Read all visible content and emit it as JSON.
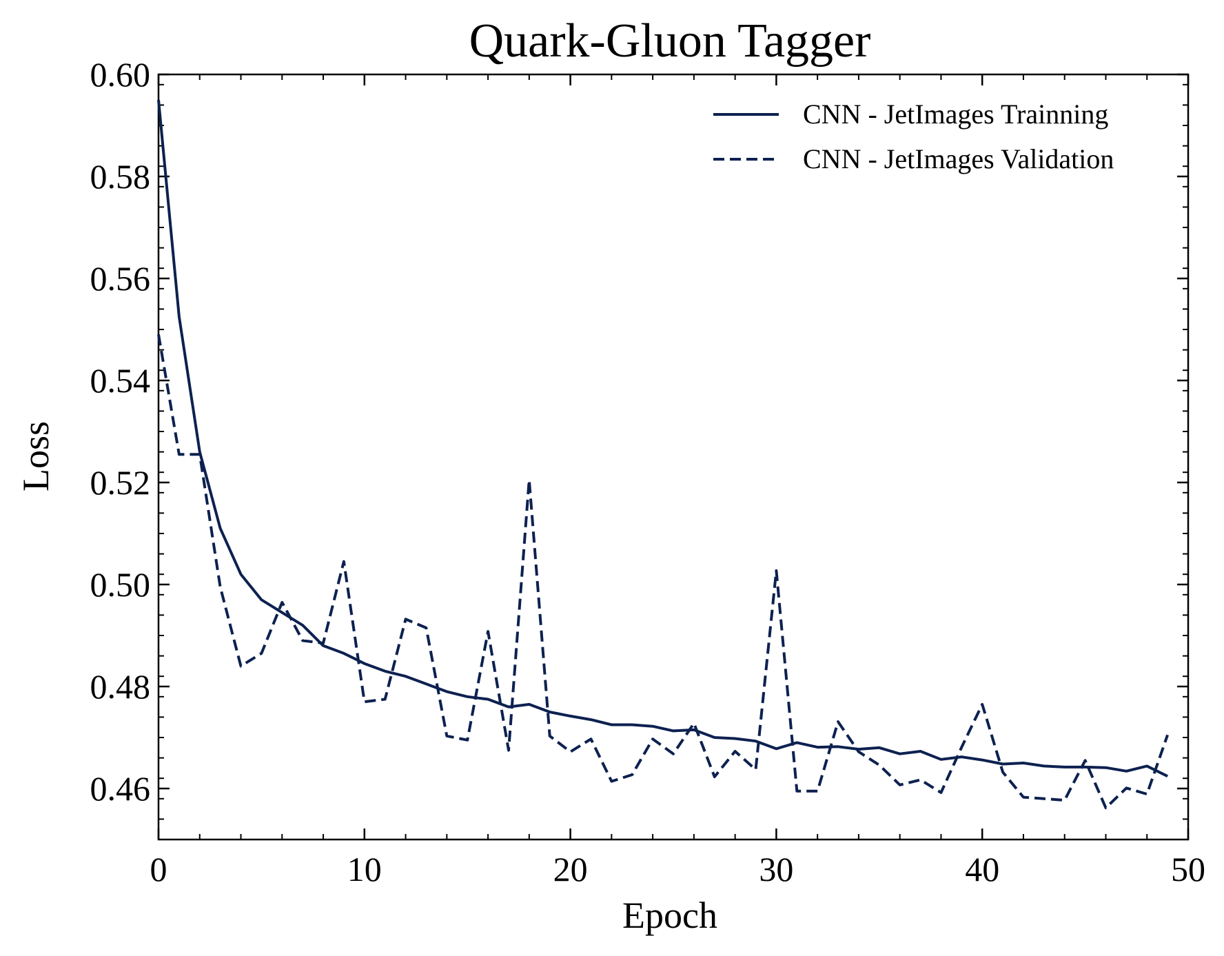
{
  "chart_data": {
    "type": "line",
    "title": "Quark-Gluon Tagger",
    "xlabel": "Epoch",
    "ylabel": "Loss",
    "xlim": [
      0,
      50
    ],
    "ylim": [
      0.45,
      0.6
    ],
    "xticks": [
      0,
      10,
      20,
      30,
      40,
      50
    ],
    "xtick_labels": [
      "0",
      "10",
      "20",
      "30",
      "40",
      "50"
    ],
    "yticks": [
      0.46,
      0.48,
      0.5,
      0.52,
      0.54,
      0.56,
      0.58,
      0.6
    ],
    "ytick_labels": [
      "0.46",
      "0.48",
      "0.50",
      "0.52",
      "0.54",
      "0.56",
      "0.58",
      "0.60"
    ],
    "grid": false,
    "legend_position": "top-right",
    "x": [
      0,
      1,
      2,
      3,
      4,
      5,
      6,
      7,
      8,
      9,
      10,
      11,
      12,
      13,
      14,
      15,
      16,
      17,
      18,
      19,
      20,
      21,
      22,
      23,
      24,
      25,
      26,
      27,
      28,
      29,
      30,
      31,
      32,
      33,
      34,
      35,
      36,
      37,
      38,
      39,
      40,
      41,
      42,
      43,
      44,
      45,
      46,
      47,
      48,
      49
    ],
    "series": [
      {
        "name": "CNN - JetImages Trainning",
        "style": "solid",
        "color": "#0d2150",
        "values": [
          0.595,
          0.5525,
          0.526,
          0.511,
          0.502,
          0.497,
          0.4945,
          0.492,
          0.488,
          0.4865,
          0.4845,
          0.483,
          0.482,
          0.4805,
          0.479,
          0.478,
          0.4775,
          0.476,
          0.4765,
          0.475,
          0.4742,
          0.4735,
          0.4725,
          0.4725,
          0.4722,
          0.4713,
          0.4715,
          0.47,
          0.4698,
          0.4693,
          0.4678,
          0.469,
          0.4681,
          0.4682,
          0.4677,
          0.468,
          0.4668,
          0.4673,
          0.4657,
          0.4662,
          0.4656,
          0.4648,
          0.465,
          0.4644,
          0.4642,
          0.4642,
          0.4641,
          0.4634,
          0.4644,
          0.4624
        ]
      },
      {
        "name": "CNN - JetImages Validation",
        "style": "dashed",
        "color": "#0d2150",
        "values": [
          0.549,
          0.5255,
          0.5255,
          0.4995,
          0.484,
          0.4865,
          0.4965,
          0.489,
          0.4885,
          0.5045,
          0.477,
          0.4775,
          0.4932,
          0.4915,
          0.4703,
          0.4695,
          0.4908,
          0.4675,
          0.5205,
          0.4703,
          0.4672,
          0.4697,
          0.4614,
          0.4627,
          0.4697,
          0.4668,
          0.4728,
          0.4623,
          0.4673,
          0.4637,
          0.5027,
          0.4595,
          0.4595,
          0.4731,
          0.4672,
          0.4646,
          0.4607,
          0.4617,
          0.4592,
          0.4681,
          0.4765,
          0.4632,
          0.4583,
          0.458,
          0.4577,
          0.4655,
          0.4562,
          0.4601,
          0.4589,
          0.4705
        ]
      }
    ]
  }
}
